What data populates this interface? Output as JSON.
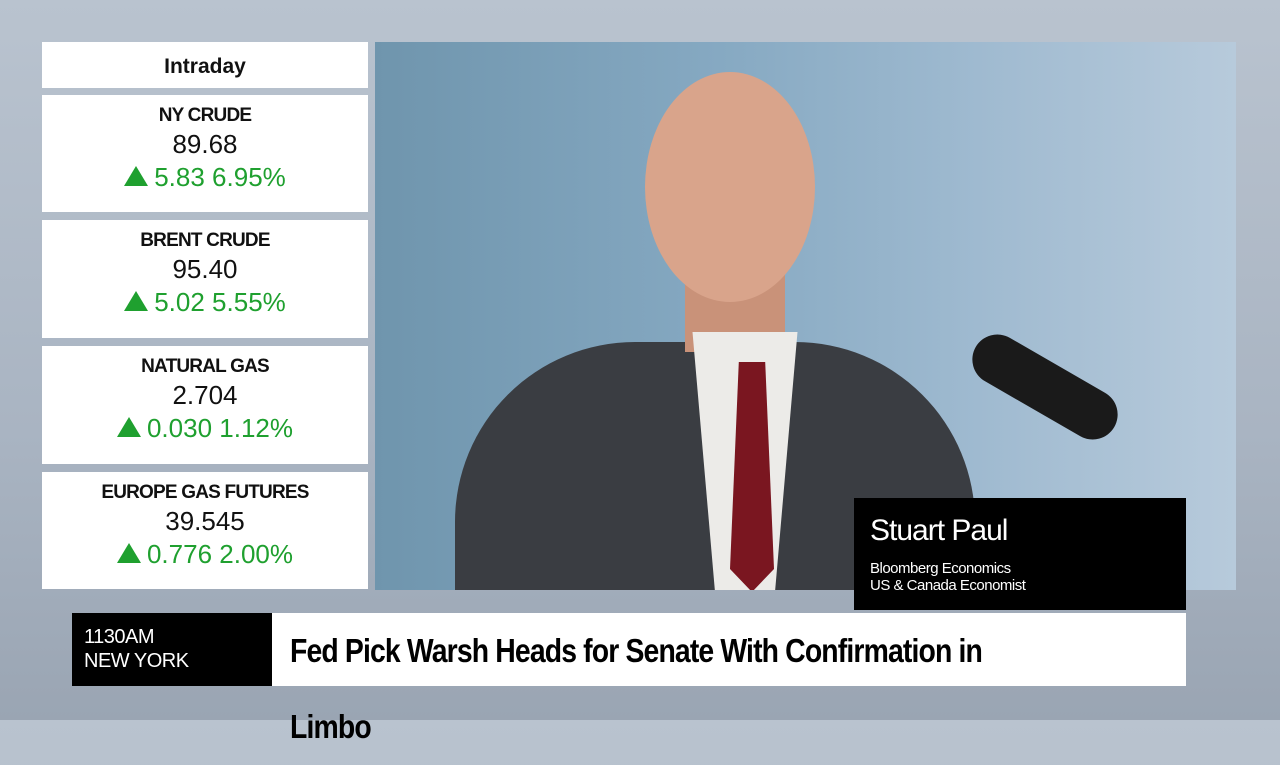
{
  "markets": {
    "header": "Intraday",
    "items": [
      {
        "name": "NY CRUDE",
        "price": "89.68",
        "change": "5.83",
        "percent": "6.95%",
        "direction": "up"
      },
      {
        "name": "BRENT CRUDE",
        "price": "95.40",
        "change": "5.02",
        "percent": "5.55%",
        "direction": "up"
      },
      {
        "name": "NATURAL GAS",
        "price": "2.704",
        "change": "0.030",
        "percent": "1.12%",
        "direction": "up"
      },
      {
        "name": "EUROPE GAS FUTURES",
        "price": "39.545",
        "change": "0.776",
        "percent": "2.00%",
        "direction": "up"
      }
    ],
    "up_color": "#1fa02f"
  },
  "guest": {
    "name": "Stuart Paul",
    "line1": "Bloomberg Economics",
    "line2": "US & Canada Economist"
  },
  "ticker": {
    "time": "1130AM",
    "city": "NEW YORK",
    "headline": "Fed Pick Warsh Heads for Senate With Confirmation in Limbo"
  }
}
